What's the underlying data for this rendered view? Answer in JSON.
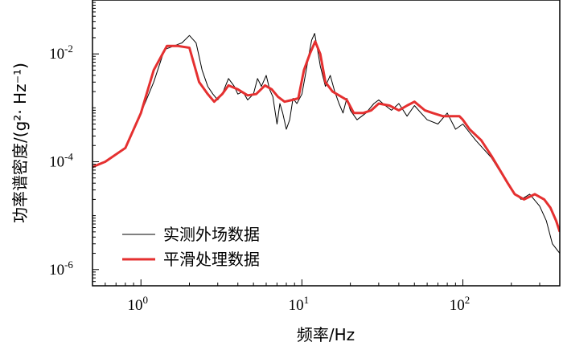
{
  "chart_data": {
    "type": "line",
    "title": "",
    "xlabel": "频率/Hz",
    "ylabel": "功率谱密度/(g²· Hz⁻¹)",
    "x_scale": "log",
    "y_scale": "log",
    "xlim": [
      0.5,
      400
    ],
    "ylim": [
      5e-07,
      0.1
    ],
    "x_ticks": [
      {
        "value": 1,
        "base": "10",
        "exp": "0"
      },
      {
        "value": 10,
        "base": "10",
        "exp": "1"
      },
      {
        "value": 100,
        "base": "10",
        "exp": "2"
      }
    ],
    "y_ticks": [
      {
        "value": 1e-06,
        "base": "10",
        "exp": "-6"
      },
      {
        "value": 0.0001,
        "base": "10",
        "exp": "-4"
      },
      {
        "value": 0.01,
        "base": "10",
        "exp": "-2"
      }
    ],
    "legend": {
      "position": "bottom-left",
      "entries": [
        "实测外场数据",
        "平滑处理数据"
      ]
    },
    "series": [
      {
        "name": "实测外场数据",
        "color": "#000000",
        "x": [
          0.5,
          0.6,
          0.8,
          1.0,
          1.2,
          1.4,
          1.6,
          1.8,
          2.0,
          2.2,
          2.4,
          2.6,
          2.8,
          3.0,
          3.2,
          3.5,
          3.8,
          4.0,
          4.3,
          4.6,
          5.0,
          5.3,
          5.6,
          6.0,
          6.3,
          6.6,
          7.0,
          7.3,
          7.6,
          8.0,
          8.4,
          8.8,
          9.3,
          10.0,
          10.5,
          11.0,
          11.5,
          12.0,
          12.5,
          13.0,
          14.0,
          15.0,
          16.0,
          17.0,
          18.0,
          19.0,
          20.0,
          22.0,
          25.0,
          28.0,
          30.0,
          33.0,
          36.0,
          40.0,
          45.0,
          50.0,
          55.0,
          60.0,
          70.0,
          80.0,
          90.0,
          100.0,
          120.0,
          150.0,
          180.0,
          200.0,
          230.0,
          260.0,
          300.0,
          330.0,
          360.0,
          400.0
        ],
        "y": [
          8e-05,
          0.0001,
          0.00018,
          0.0008,
          0.003,
          0.012,
          0.014,
          0.016,
          0.022,
          0.016,
          0.005,
          0.0025,
          0.0018,
          0.0014,
          0.0018,
          0.0035,
          0.0025,
          0.0018,
          0.002,
          0.0014,
          0.0018,
          0.0035,
          0.0025,
          0.004,
          0.0022,
          0.0016,
          0.0005,
          0.0012,
          0.0008,
          0.0004,
          0.0006,
          0.0015,
          0.0012,
          0.0018,
          0.004,
          0.009,
          0.018,
          0.024,
          0.012,
          0.006,
          0.0025,
          0.004,
          0.002,
          0.0012,
          0.0008,
          0.0015,
          0.0009,
          0.0006,
          0.0008,
          0.0012,
          0.0014,
          0.0011,
          0.0009,
          0.0012,
          0.0007,
          0.0011,
          0.0008,
          0.0006,
          0.0005,
          0.0008,
          0.0004,
          0.0005,
          0.00025,
          0.00012,
          5e-05,
          3e-05,
          2e-05,
          2.5e-05,
          1.5e-05,
          8e-06,
          3e-06,
          2e-06
        ]
      },
      {
        "name": "平滑处理数据",
        "color": "#e53030",
        "x": [
          0.5,
          0.6,
          0.8,
          1.0,
          1.2,
          1.45,
          1.7,
          2.0,
          2.3,
          2.6,
          2.85,
          3.2,
          3.5,
          4.0,
          4.6,
          5.2,
          5.9,
          6.5,
          7.1,
          7.8,
          8.7,
          9.5,
          10.3,
          11.2,
          12.1,
          13.0,
          14.0,
          15.5,
          17.0,
          19.0,
          21.0,
          24.0,
          27.0,
          30.0,
          35.0,
          40.0,
          45.0,
          50.0,
          58.0,
          65.0,
          75.0,
          85.0,
          95.0,
          100.0,
          110.0,
          130.0,
          150.0,
          170.0,
          190.0,
          210.0,
          240.0,
          280.0,
          320.0,
          350.0,
          380.0,
          400.0
        ],
        "y": [
          8e-05,
          0.0001,
          0.00018,
          0.0008,
          0.005,
          0.014,
          0.014,
          0.013,
          0.003,
          0.0018,
          0.0013,
          0.0018,
          0.0026,
          0.0022,
          0.0017,
          0.0018,
          0.0026,
          0.0022,
          0.0016,
          0.0013,
          0.0014,
          0.0015,
          0.005,
          0.01,
          0.017,
          0.01,
          0.003,
          0.002,
          0.0017,
          0.0014,
          0.0008,
          0.0008,
          0.0009,
          0.0012,
          0.0011,
          0.0009,
          0.0011,
          0.0013,
          0.0009,
          0.0008,
          0.0007,
          0.0007,
          0.0007,
          0.0006,
          0.0004,
          0.00025,
          0.00013,
          7e-05,
          4e-05,
          2.5e-05,
          2e-05,
          2.5e-05,
          2e-05,
          1.4e-05,
          8e-06,
          5e-06
        ]
      }
    ]
  }
}
